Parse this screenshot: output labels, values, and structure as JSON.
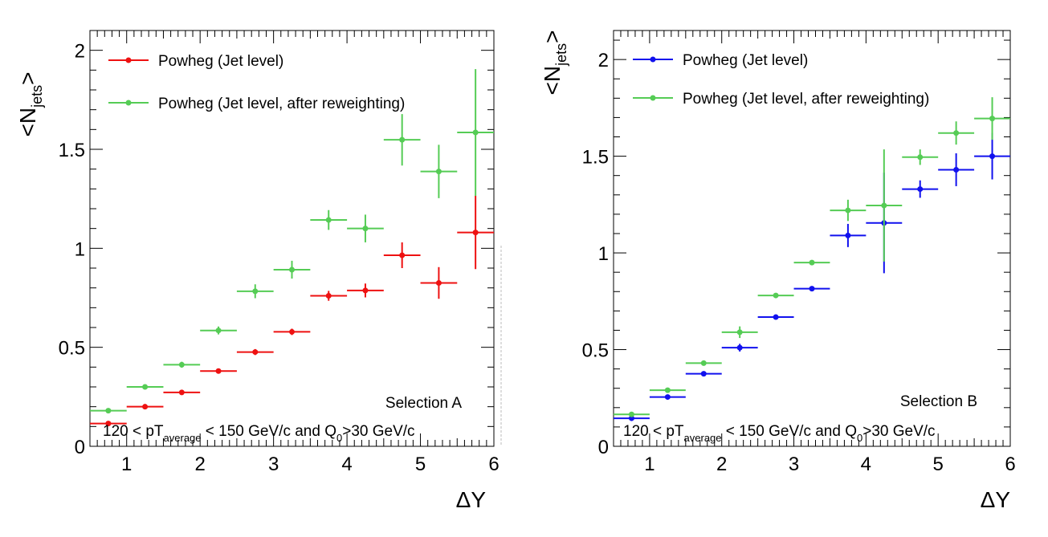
{
  "chart_data": [
    {
      "type": "scatter",
      "xlabel": "ΔY",
      "ylabel": "<N_jets>",
      "xlim": [
        0.5,
        6
      ],
      "ylim": [
        0,
        2.1
      ],
      "x_ticks": [
        "1",
        "2",
        "3",
        "4",
        "5",
        "6"
      ],
      "y_ticks": [
        "0",
        "0.5",
        "1",
        "1.5",
        "2"
      ],
      "annotation_selection": "Selection A",
      "annotation_cut": {
        "a": "120 < pT",
        "b": "average",
        "c": " < 150 GeV/c and Q",
        "d": "0",
        "e": ">30 GeV/c"
      },
      "legend_position": "top-left",
      "grid": false,
      "series": [
        {
          "name": "Powheg (Jet level)",
          "color": "#ee1111",
          "x": [
            0.75,
            1.25,
            1.75,
            2.25,
            2.75,
            3.25,
            3.75,
            4.25,
            4.75,
            5.25,
            5.75
          ],
          "xerr": 0.25,
          "y": [
            0.115,
            0.2,
            0.272,
            0.38,
            0.476,
            0.578,
            0.76,
            0.787,
            0.965,
            0.825,
            1.08
          ],
          "yerr": [
            0.006,
            0.008,
            0.01,
            0.012,
            0.015,
            0.016,
            0.025,
            0.035,
            0.065,
            0.08,
            0.185
          ]
        },
        {
          "name": "Powheg (Jet level, after reweighting)",
          "color": "#55cc55",
          "x": [
            0.75,
            1.25,
            1.75,
            2.25,
            2.75,
            3.25,
            3.75,
            4.25,
            4.75,
            5.25,
            5.75
          ],
          "xerr": 0.25,
          "y": [
            0.18,
            0.3,
            0.412,
            0.585,
            0.783,
            0.892,
            1.143,
            1.1,
            1.548,
            1.388,
            1.585
          ],
          "yerr": [
            0.008,
            0.012,
            0.015,
            0.02,
            0.035,
            0.045,
            0.05,
            0.07,
            0.13,
            0.135,
            0.32
          ]
        }
      ]
    },
    {
      "type": "scatter",
      "xlabel": "ΔY",
      "ylabel": "<N_jets>",
      "xlim": [
        0.5,
        6
      ],
      "ylim": [
        0,
        2.15
      ],
      "x_ticks": [
        "1",
        "2",
        "3",
        "4",
        "5",
        "6"
      ],
      "y_ticks": [
        "0",
        "0.5",
        "1",
        "1.5",
        "2"
      ],
      "annotation_selection": "Selection B",
      "annotation_cut": {
        "a": "120 < pT",
        "b": "average",
        "c": " < 150 GeV/c and Q",
        "d": "0",
        "e": ">30 GeV/c"
      },
      "legend_position": "top-left",
      "grid": false,
      "series": [
        {
          "name": "Powheg (Jet level)",
          "color": "#1111ee",
          "x": [
            0.75,
            1.25,
            1.75,
            2.25,
            2.75,
            3.25,
            3.75,
            4.25,
            4.75,
            5.25,
            5.75
          ],
          "xerr": 0.25,
          "y": [
            0.145,
            0.255,
            0.375,
            0.51,
            0.668,
            0.815,
            1.09,
            1.155,
            1.33,
            1.43,
            1.5
          ],
          "yerr": [
            0.005,
            0.008,
            0.01,
            0.02,
            0.012,
            0.01,
            0.06,
            0.26,
            0.045,
            0.085,
            0.12
          ]
        },
        {
          "name": "Powheg (Jet level, after reweighting)",
          "color": "#55cc55",
          "x": [
            0.75,
            1.25,
            1.75,
            2.25,
            2.75,
            3.25,
            3.75,
            4.25,
            4.75,
            5.25,
            5.75
          ],
          "xerr": 0.25,
          "y": [
            0.165,
            0.29,
            0.43,
            0.59,
            0.78,
            0.95,
            1.22,
            1.245,
            1.495,
            1.62,
            1.695
          ],
          "yerr": [
            0.005,
            0.008,
            0.01,
            0.03,
            0.01,
            0.01,
            0.055,
            0.29,
            0.04,
            0.06,
            0.11
          ]
        }
      ]
    }
  ]
}
